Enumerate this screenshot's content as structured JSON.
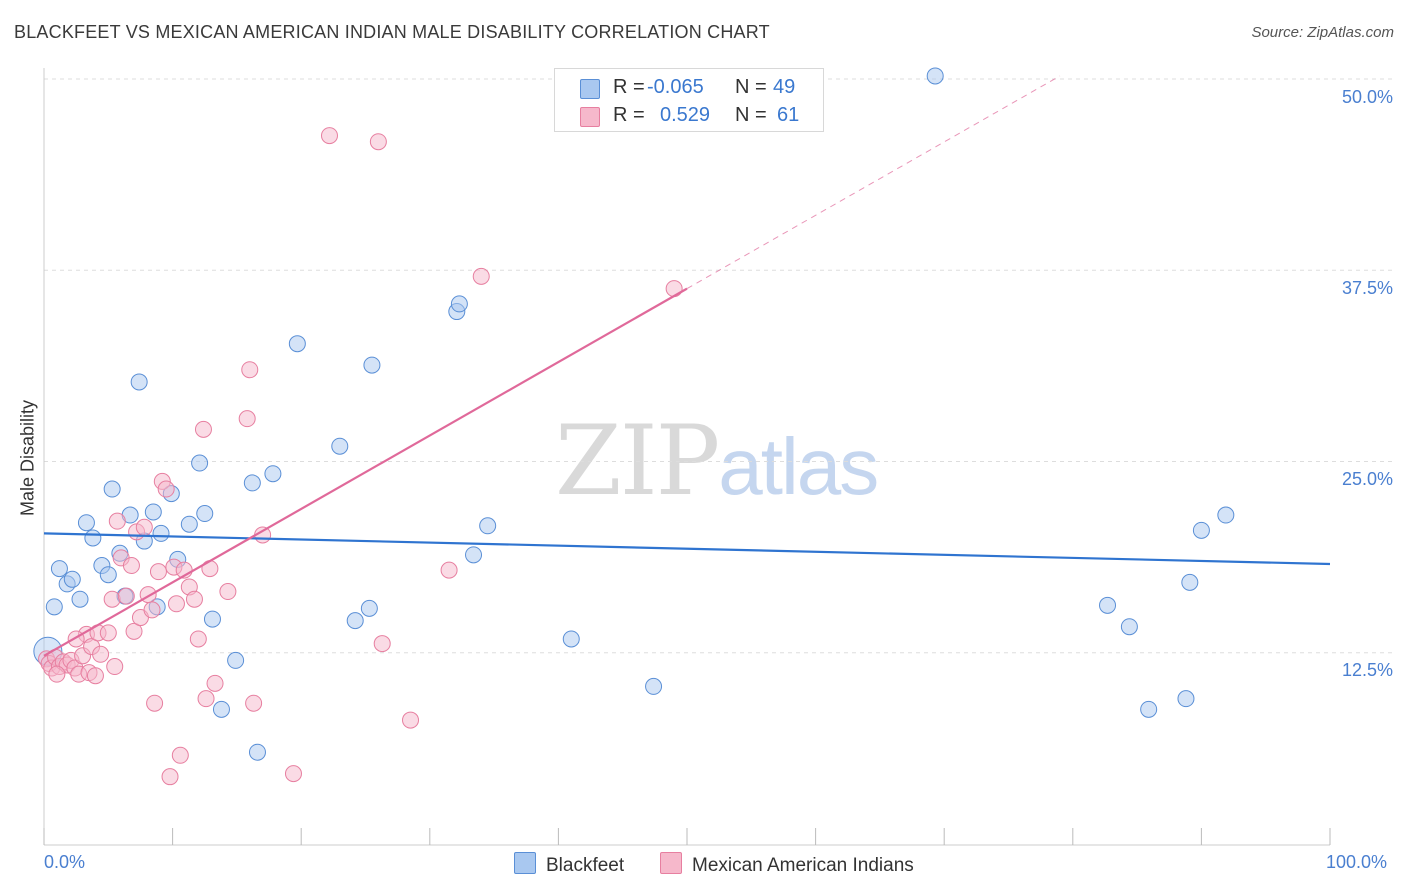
{
  "title": "BLACKFEET VS MEXICAN AMERICAN INDIAN MALE DISABILITY CORRELATION CHART",
  "source": "Source: ZipAtlas.com",
  "watermark": {
    "zip": "ZIP",
    "atlas": "atlas"
  },
  "legend_top": {
    "rows": [
      {
        "r_label": "R =",
        "r_value": "-0.065",
        "n_label": "N =",
        "n_value": "49",
        "color": "#a9c8f0"
      },
      {
        "r_label": "R =",
        "r_value": "0.529",
        "n_label": "N =",
        "n_value": "61",
        "color": "#f6b8cb"
      }
    ]
  },
  "legend_bottom": {
    "series1": "Blackfeet",
    "series2": "Mexican American Indians"
  },
  "colors": {
    "blue_fill": "#a9c8f0",
    "blue_stroke": "#5a8fd6",
    "blue_line": "#2f74d0",
    "pink_fill": "#f6b8cb",
    "pink_stroke": "#e77fa0",
    "pink_line": "#e0699a",
    "grid": "#dddddd",
    "tick_text": "#4a7fd0"
  },
  "chart_data": {
    "type": "scatter",
    "title": "BLACKFEET VS MEXICAN AMERICAN INDIAN MALE DISABILITY CORRELATION CHART",
    "xlabel": "",
    "ylabel": "Male Disability",
    "xlim": [
      0,
      100
    ],
    "ylim": [
      0,
      50
    ],
    "x_tick_labels": [
      "0.0%",
      "100.0%"
    ],
    "y_ticks": [
      12.5,
      25.0,
      37.5,
      50.0
    ],
    "y_tick_labels": [
      "12.5%",
      "25.0%",
      "37.5%",
      "50.0%"
    ],
    "grid": true,
    "legend_position": "top-center",
    "series": [
      {
        "name": "Blackfeet",
        "r": -0.065,
        "n": 49,
        "trend": {
          "x": [
            0,
            100
          ],
          "y": [
            20.3,
            18.3
          ],
          "dashed_extension": false
        },
        "points": [
          [
            0.3,
            12.6
          ],
          [
            0.8,
            15.5
          ],
          [
            1.2,
            18.0
          ],
          [
            1.8,
            17.0
          ],
          [
            2.2,
            17.3
          ],
          [
            2.8,
            16.0
          ],
          [
            3.3,
            21.0
          ],
          [
            3.8,
            20.0
          ],
          [
            4.5,
            18.2
          ],
          [
            5.0,
            17.6
          ],
          [
            5.3,
            23.2
          ],
          [
            5.9,
            19.0
          ],
          [
            6.3,
            16.2
          ],
          [
            6.7,
            21.5
          ],
          [
            7.4,
            30.2
          ],
          [
            7.8,
            19.8
          ],
          [
            8.5,
            21.7
          ],
          [
            8.8,
            15.5
          ],
          [
            9.1,
            20.3
          ],
          [
            9.9,
            22.9
          ],
          [
            10.4,
            18.6
          ],
          [
            11.3,
            20.9
          ],
          [
            12.1,
            24.9
          ],
          [
            12.5,
            21.6
          ],
          [
            13.1,
            14.7
          ],
          [
            13.8,
            8.8
          ],
          [
            14.9,
            12.0
          ],
          [
            16.2,
            23.6
          ],
          [
            16.6,
            6.0
          ],
          [
            17.8,
            24.2
          ],
          [
            19.7,
            32.7
          ],
          [
            23.0,
            26.0
          ],
          [
            24.2,
            14.6
          ],
          [
            25.3,
            15.4
          ],
          [
            25.5,
            31.3
          ],
          [
            32.1,
            34.8
          ],
          [
            32.3,
            35.3
          ],
          [
            33.4,
            18.9
          ],
          [
            34.5,
            20.8
          ],
          [
            41.0,
            13.4
          ],
          [
            47.4,
            10.3
          ],
          [
            69.3,
            50.2
          ],
          [
            82.7,
            15.6
          ],
          [
            84.4,
            14.2
          ],
          [
            85.9,
            8.8
          ],
          [
            89.1,
            17.1
          ],
          [
            88.8,
            9.5
          ],
          [
            90.0,
            20.5
          ],
          [
            91.9,
            21.5
          ]
        ]
      },
      {
        "name": "Mexican American Indians",
        "r": 0.529,
        "n": 61,
        "trend": {
          "x": [
            0,
            50
          ],
          "y": [
            12.3,
            36.3
          ],
          "dashed_extension": true,
          "dashed_to": {
            "x": 79,
            "y": 50.2
          }
        },
        "points": [
          [
            0.2,
            12.1
          ],
          [
            0.4,
            11.8
          ],
          [
            0.6,
            11.5
          ],
          [
            0.9,
            12.2
          ],
          [
            1.2,
            11.6
          ],
          [
            1.5,
            11.9
          ],
          [
            1.8,
            11.7
          ],
          [
            2.1,
            12.0
          ],
          [
            2.4,
            11.5
          ],
          [
            2.7,
            11.1
          ],
          [
            3.0,
            12.3
          ],
          [
            3.3,
            13.7
          ],
          [
            3.5,
            11.2
          ],
          [
            3.7,
            12.9
          ],
          [
            4.0,
            11.0
          ],
          [
            4.2,
            13.8
          ],
          [
            4.4,
            12.4
          ],
          [
            5.0,
            13.8
          ],
          [
            5.3,
            16.0
          ],
          [
            5.7,
            21.1
          ],
          [
            6.0,
            18.7
          ],
          [
            6.4,
            16.2
          ],
          [
            6.8,
            18.2
          ],
          [
            7.0,
            13.9
          ],
          [
            7.2,
            20.4
          ],
          [
            7.5,
            14.8
          ],
          [
            7.8,
            20.7
          ],
          [
            8.1,
            16.3
          ],
          [
            8.4,
            15.3
          ],
          [
            8.6,
            9.2
          ],
          [
            8.9,
            17.8
          ],
          [
            9.2,
            23.7
          ],
          [
            9.5,
            23.2
          ],
          [
            9.8,
            4.4
          ],
          [
            10.1,
            18.1
          ],
          [
            10.3,
            15.7
          ],
          [
            10.6,
            5.8
          ],
          [
            10.9,
            17.9
          ],
          [
            11.3,
            16.8
          ],
          [
            11.7,
            16.0
          ],
          [
            12.0,
            13.4
          ],
          [
            12.4,
            27.1
          ],
          [
            12.6,
            9.5
          ],
          [
            12.9,
            18.0
          ],
          [
            13.3,
            10.5
          ],
          [
            14.3,
            16.5
          ],
          [
            15.8,
            27.8
          ],
          [
            16.0,
            31.0
          ],
          [
            16.3,
            9.2
          ],
          [
            17.0,
            20.2
          ],
          [
            19.4,
            4.6
          ],
          [
            22.2,
            46.3
          ],
          [
            26.0,
            45.9
          ],
          [
            26.3,
            13.1
          ],
          [
            28.5,
            8.1
          ],
          [
            31.5,
            17.9
          ],
          [
            34.0,
            37.1
          ],
          [
            49.0,
            36.3
          ],
          [
            2.5,
            13.4
          ],
          [
            5.5,
            11.6
          ],
          [
            1.0,
            11.1
          ]
        ]
      }
    ]
  }
}
